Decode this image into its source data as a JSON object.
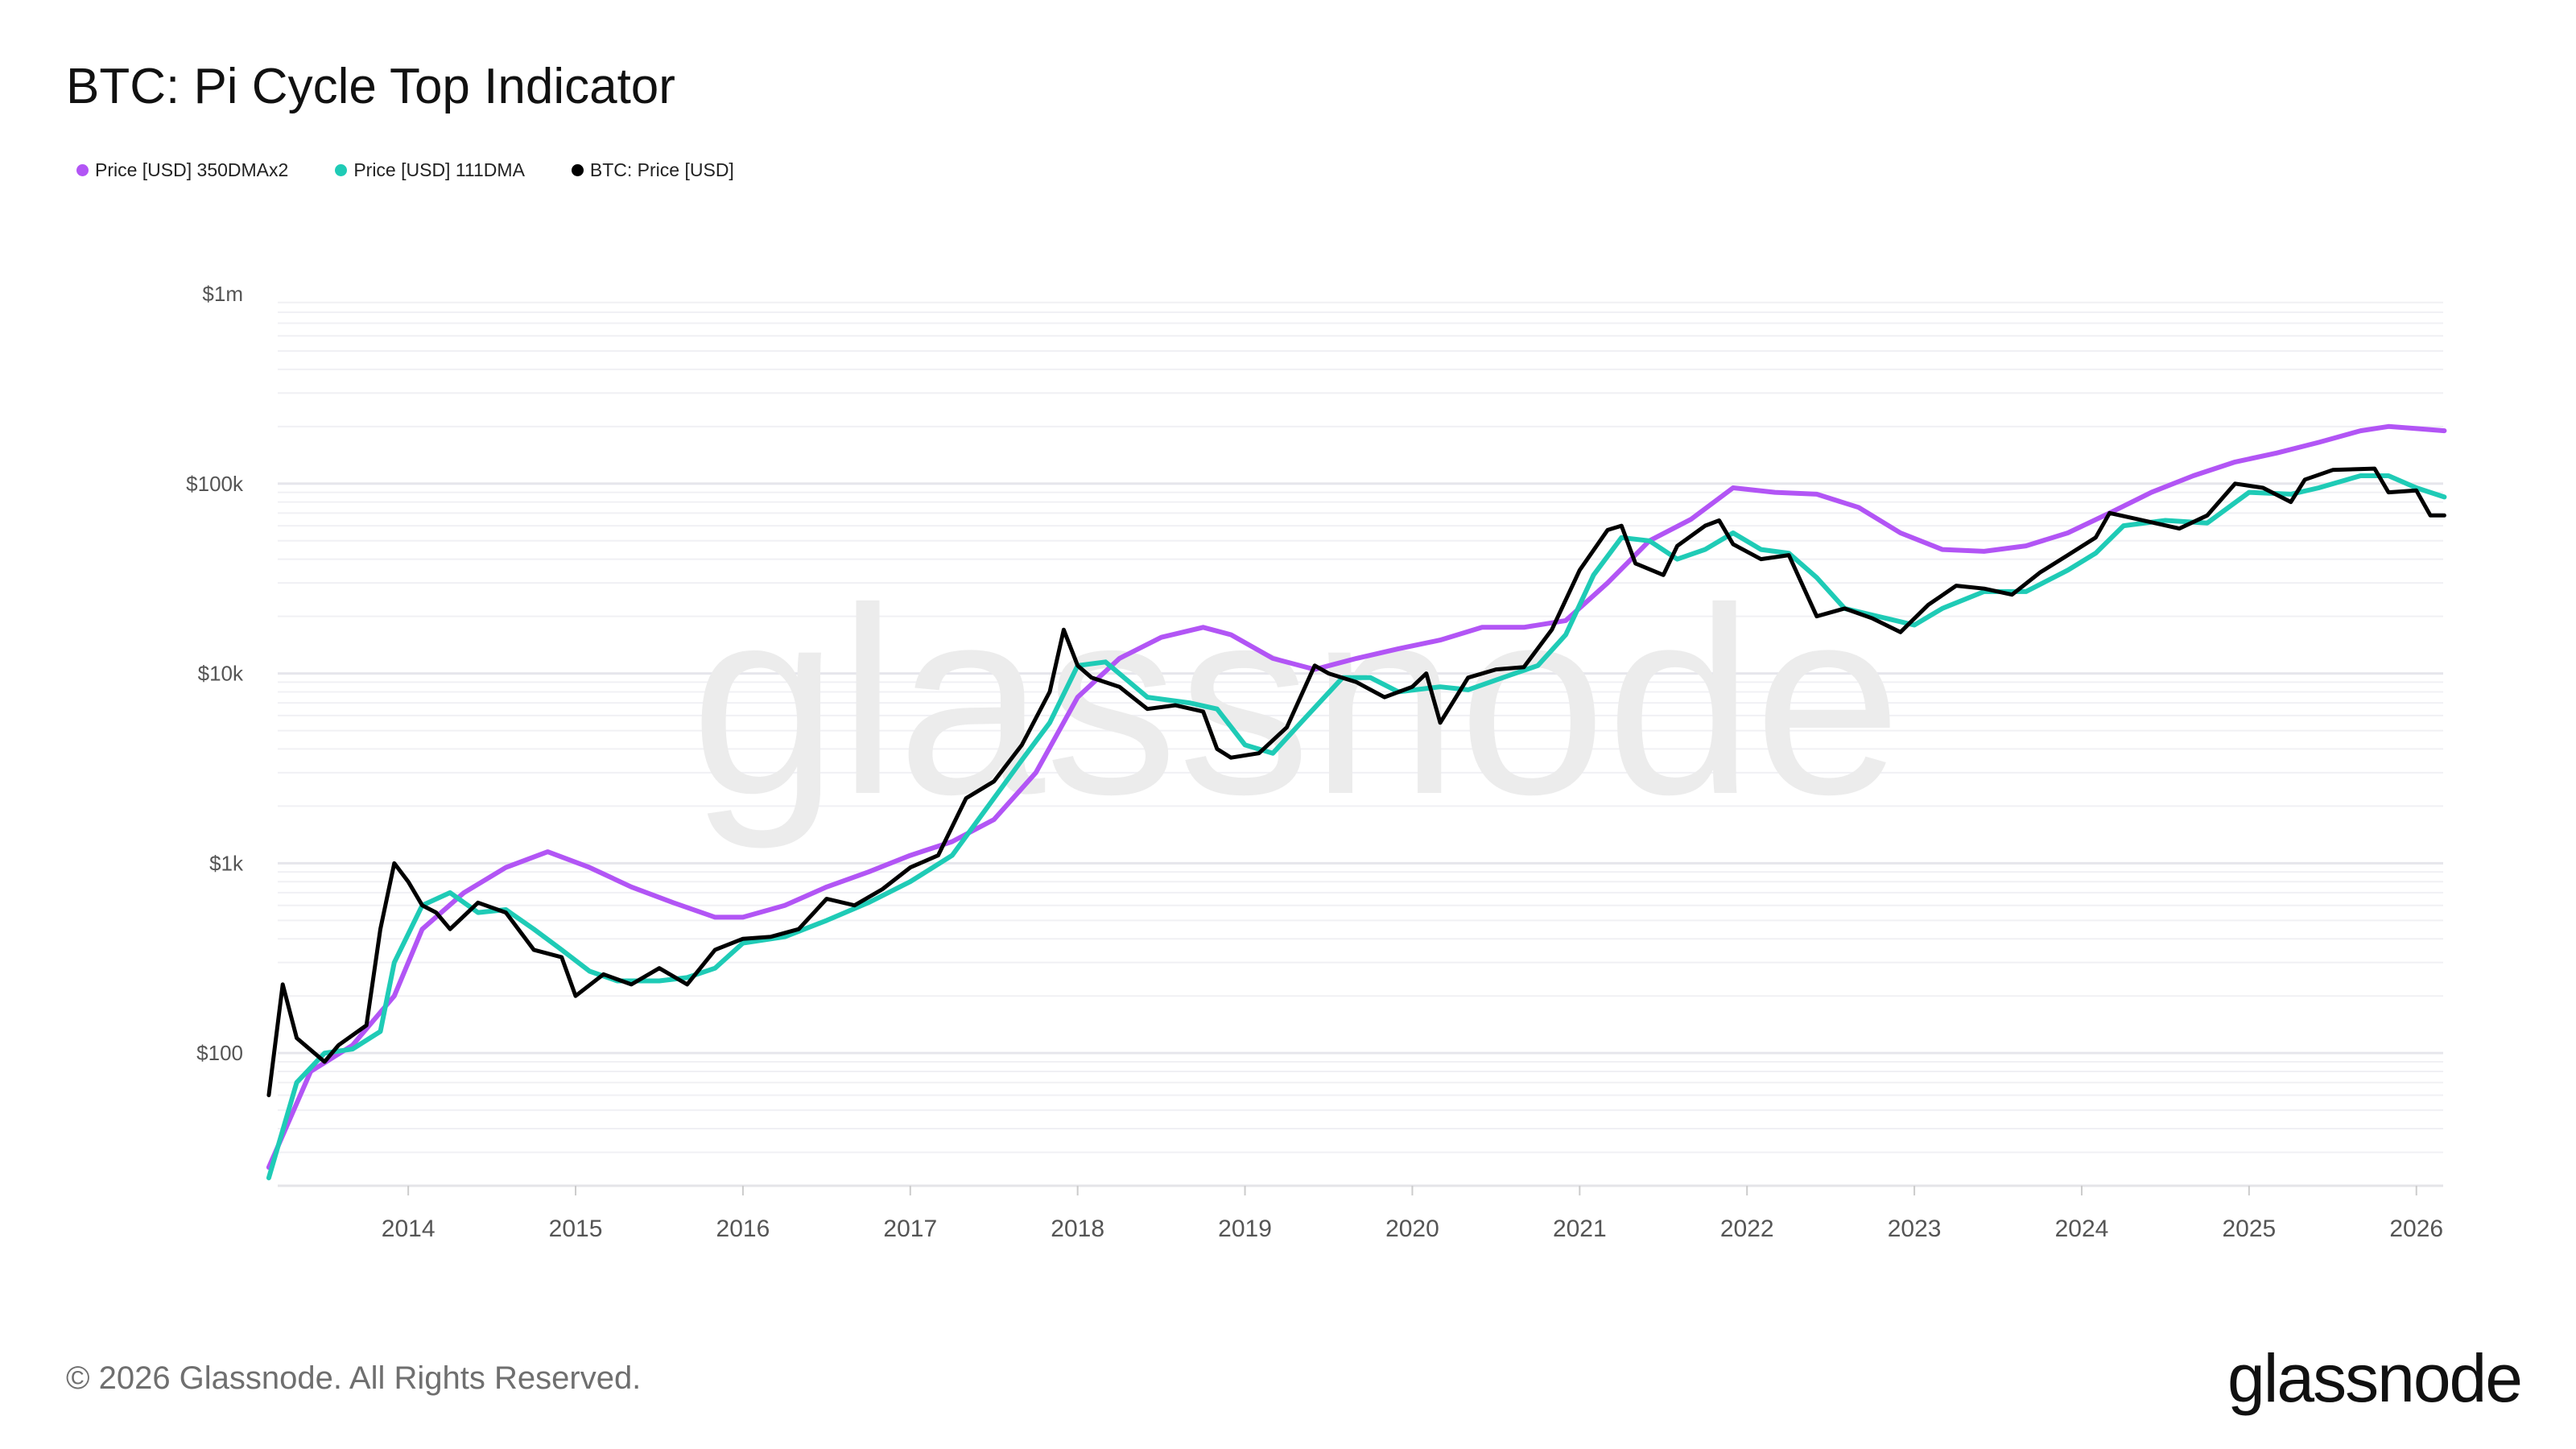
{
  "title": "BTC: Pi Cycle Top Indicator",
  "legend": [
    {
      "label": "Price [USD] 350DMAx2",
      "color": "#b255f5"
    },
    {
      "label": "Price [USD] 111DMA",
      "color": "#1fcbb6"
    },
    {
      "label": "BTC: Price [USD]",
      "color": "#000000"
    }
  ],
  "footer": {
    "copyright": "© 2026 Glassnode. All Rights Reserved.",
    "logo": "glassnode"
  },
  "watermark": "glassnode",
  "chart_data": {
    "type": "line",
    "title": "BTC: Pi Cycle Top Indicator",
    "xlabel": "",
    "ylabel": "",
    "y_scale": "log",
    "ylim": [
      20,
      1000000
    ],
    "xlim": [
      "2013-03",
      "2026-03"
    ],
    "grid": true,
    "legend_position": "top-left",
    "y_ticks": [
      {
        "value": 100,
        "label": "$100"
      },
      {
        "value": 1000,
        "label": "$1k"
      },
      {
        "value": 10000,
        "label": "$10k"
      },
      {
        "value": 100000,
        "label": "$100k"
      },
      {
        "value": 1000000,
        "label": "$1m"
      }
    ],
    "x_ticks": [
      "2014",
      "2015",
      "2016",
      "2017",
      "2018",
      "2019",
      "2020",
      "2021",
      "2022",
      "2023",
      "2024",
      "2025",
      "2026"
    ],
    "series": [
      {
        "name": "Price [USD] 350DMAx2",
        "color": "#b255f5",
        "points": [
          [
            "2013-03",
            25
          ],
          [
            "2013-06",
            80
          ],
          [
            "2013-09",
            110
          ],
          [
            "2013-12",
            200
          ],
          [
            "2014-02",
            450
          ],
          [
            "2014-05",
            700
          ],
          [
            "2014-08",
            950
          ],
          [
            "2014-11",
            1150
          ],
          [
            "2015-02",
            950
          ],
          [
            "2015-05",
            750
          ],
          [
            "2015-08",
            620
          ],
          [
            "2015-11",
            520
          ],
          [
            "2016-01",
            520
          ],
          [
            "2016-04",
            600
          ],
          [
            "2016-07",
            750
          ],
          [
            "2016-10",
            900
          ],
          [
            "2017-01",
            1100
          ],
          [
            "2017-04",
            1300
          ],
          [
            "2017-07",
            1700
          ],
          [
            "2017-10",
            3000
          ],
          [
            "2018-01",
            7500
          ],
          [
            "2018-04",
            12000
          ],
          [
            "2018-07",
            15500
          ],
          [
            "2018-10",
            17500
          ],
          [
            "2018-12",
            16000
          ],
          [
            "2019-03",
            12000
          ],
          [
            "2019-06",
            10500
          ],
          [
            "2019-09",
            12000
          ],
          [
            "2019-12",
            13500
          ],
          [
            "2020-03",
            15000
          ],
          [
            "2020-06",
            17500
          ],
          [
            "2020-09",
            17500
          ],
          [
            "2020-12",
            19000
          ],
          [
            "2021-03",
            30000
          ],
          [
            "2021-06",
            50000
          ],
          [
            "2021-09",
            65000
          ],
          [
            "2021-12",
            95000
          ],
          [
            "2022-03",
            90000
          ],
          [
            "2022-06",
            88000
          ],
          [
            "2022-09",
            75000
          ],
          [
            "2022-12",
            55000
          ],
          [
            "2023-03",
            45000
          ],
          [
            "2023-06",
            44000
          ],
          [
            "2023-09",
            47000
          ],
          [
            "2023-12",
            55000
          ],
          [
            "2024-03",
            70000
          ],
          [
            "2024-06",
            90000
          ],
          [
            "2024-09",
            110000
          ],
          [
            "2024-12",
            130000
          ],
          [
            "2025-03",
            145000
          ],
          [
            "2025-06",
            165000
          ],
          [
            "2025-09",
            190000
          ],
          [
            "2025-11",
            200000
          ],
          [
            "2026-01",
            195000
          ],
          [
            "2026-03",
            190000
          ]
        ]
      },
      {
        "name": "Price [USD] 111DMA",
        "color": "#1fcbb6",
        "points": [
          [
            "2013-03",
            22
          ],
          [
            "2013-05",
            70
          ],
          [
            "2013-07",
            100
          ],
          [
            "2013-09",
            105
          ],
          [
            "2013-11",
            130
          ],
          [
            "2013-12",
            300
          ],
          [
            "2014-02",
            600
          ],
          [
            "2014-04",
            700
          ],
          [
            "2014-06",
            550
          ],
          [
            "2014-08",
            570
          ],
          [
            "2014-10",
            450
          ],
          [
            "2014-12",
            350
          ],
          [
            "2015-02",
            270
          ],
          [
            "2015-04",
            240
          ],
          [
            "2015-07",
            240
          ],
          [
            "2015-09",
            250
          ],
          [
            "2015-11",
            280
          ],
          [
            "2016-01",
            380
          ],
          [
            "2016-04",
            410
          ],
          [
            "2016-07",
            500
          ],
          [
            "2016-10",
            620
          ],
          [
            "2017-01",
            800
          ],
          [
            "2017-04",
            1100
          ],
          [
            "2017-07",
            2200
          ],
          [
            "2017-09",
            3500
          ],
          [
            "2017-11",
            5500
          ],
          [
            "2018-01",
            11000
          ],
          [
            "2018-03",
            11500
          ],
          [
            "2018-06",
            7500
          ],
          [
            "2018-09",
            7000
          ],
          [
            "2018-11",
            6500
          ],
          [
            "2019-01",
            4200
          ],
          [
            "2019-03",
            3800
          ],
          [
            "2019-05",
            5500
          ],
          [
            "2019-08",
            9500
          ],
          [
            "2019-10",
            9500
          ],
          [
            "2019-12",
            8000
          ],
          [
            "2020-03",
            8500
          ],
          [
            "2020-05",
            8200
          ],
          [
            "2020-08",
            9800
          ],
          [
            "2020-10",
            11000
          ],
          [
            "2020-12",
            16000
          ],
          [
            "2021-02",
            33000
          ],
          [
            "2021-04",
            52000
          ],
          [
            "2021-06",
            50000
          ],
          [
            "2021-08",
            40000
          ],
          [
            "2021-10",
            45000
          ],
          [
            "2021-12",
            55000
          ],
          [
            "2022-02",
            45000
          ],
          [
            "2022-04",
            43000
          ],
          [
            "2022-06",
            32000
          ],
          [
            "2022-08",
            22000
          ],
          [
            "2022-11",
            19500
          ],
          [
            "2023-01",
            18000
          ],
          [
            "2023-03",
            22000
          ],
          [
            "2023-06",
            27000
          ],
          [
            "2023-09",
            27000
          ],
          [
            "2023-12",
            35000
          ],
          [
            "2024-02",
            43000
          ],
          [
            "2024-04",
            60000
          ],
          [
            "2024-07",
            64000
          ],
          [
            "2024-10",
            62000
          ],
          [
            "2025-01",
            90000
          ],
          [
            "2025-04",
            88000
          ],
          [
            "2025-06",
            95000
          ],
          [
            "2025-09",
            110000
          ],
          [
            "2025-11",
            110000
          ],
          [
            "2026-01",
            95000
          ],
          [
            "2026-03",
            85000
          ]
        ]
      },
      {
        "name": "BTC: Price [USD]",
        "color": "#000000",
        "points": [
          [
            "2013-03",
            60
          ],
          [
            "2013-04",
            230
          ],
          [
            "2013-05",
            120
          ],
          [
            "2013-07",
            90
          ],
          [
            "2013-08",
            110
          ],
          [
            "2013-10",
            140
          ],
          [
            "2013-11",
            450
          ],
          [
            "2013-12",
            1000
          ],
          [
            "2014-01",
            800
          ],
          [
            "2014-02",
            600
          ],
          [
            "2014-03",
            550
          ],
          [
            "2014-04",
            450
          ],
          [
            "2014-06",
            620
          ],
          [
            "2014-08",
            550
          ],
          [
            "2014-10",
            350
          ],
          [
            "2014-12",
            320
          ],
          [
            "2015-01",
            200
          ],
          [
            "2015-03",
            260
          ],
          [
            "2015-05",
            230
          ],
          [
            "2015-07",
            280
          ],
          [
            "2015-09",
            230
          ],
          [
            "2015-11",
            350
          ],
          [
            "2016-01",
            400
          ],
          [
            "2016-03",
            410
          ],
          [
            "2016-05",
            450
          ],
          [
            "2016-07",
            650
          ],
          [
            "2016-09",
            600
          ],
          [
            "2016-11",
            730
          ],
          [
            "2017-01",
            950
          ],
          [
            "2017-03",
            1100
          ],
          [
            "2017-05",
            2200
          ],
          [
            "2017-07",
            2700
          ],
          [
            "2017-09",
            4200
          ],
          [
            "2017-11",
            8000
          ],
          [
            "2017-12",
            17000
          ],
          [
            "2018-01",
            11000
          ],
          [
            "2018-02",
            9500
          ],
          [
            "2018-04",
            8500
          ],
          [
            "2018-06",
            6500
          ],
          [
            "2018-08",
            6800
          ],
          [
            "2018-10",
            6300
          ],
          [
            "2018-11",
            4000
          ],
          [
            "2018-12",
            3600
          ],
          [
            "2019-02",
            3800
          ],
          [
            "2019-04",
            5200
          ],
          [
            "2019-06",
            11000
          ],
          [
            "2019-07",
            10000
          ],
          [
            "2019-09",
            9000
          ],
          [
            "2019-11",
            7500
          ],
          [
            "2020-01",
            8500
          ],
          [
            "2020-02",
            10000
          ],
          [
            "2020-03",
            5500
          ],
          [
            "2020-05",
            9500
          ],
          [
            "2020-07",
            10500
          ],
          [
            "2020-09",
            10800
          ],
          [
            "2020-11",
            17000
          ],
          [
            "2021-01",
            35000
          ],
          [
            "2021-03",
            57000
          ],
          [
            "2021-04",
            60000
          ],
          [
            "2021-05",
            38000
          ],
          [
            "2021-07",
            33000
          ],
          [
            "2021-08",
            47000
          ],
          [
            "2021-10",
            60000
          ],
          [
            "2021-11",
            64000
          ],
          [
            "2021-12",
            48000
          ],
          [
            "2022-02",
            40000
          ],
          [
            "2022-04",
            42000
          ],
          [
            "2022-06",
            20000
          ],
          [
            "2022-08",
            22000
          ],
          [
            "2022-10",
            19500
          ],
          [
            "2022-12",
            16500
          ],
          [
            "2023-02",
            23000
          ],
          [
            "2023-04",
            29000
          ],
          [
            "2023-06",
            28000
          ],
          [
            "2023-08",
            26000
          ],
          [
            "2023-10",
            34000
          ],
          [
            "2023-12",
            42000
          ],
          [
            "2024-02",
            52000
          ],
          [
            "2024-03",
            70000
          ],
          [
            "2024-05",
            65000
          ],
          [
            "2024-08",
            58000
          ],
          [
            "2024-10",
            68000
          ],
          [
            "2024-12",
            100000
          ],
          [
            "2025-02",
            95000
          ],
          [
            "2025-04",
            80000
          ],
          [
            "2025-05",
            105000
          ],
          [
            "2025-07",
            118000
          ],
          [
            "2025-10",
            120000
          ],
          [
            "2025-11",
            90000
          ],
          [
            "2026-01",
            92000
          ],
          [
            "2026-02",
            68000
          ],
          [
            "2026-03",
            68000
          ]
        ]
      }
    ]
  }
}
